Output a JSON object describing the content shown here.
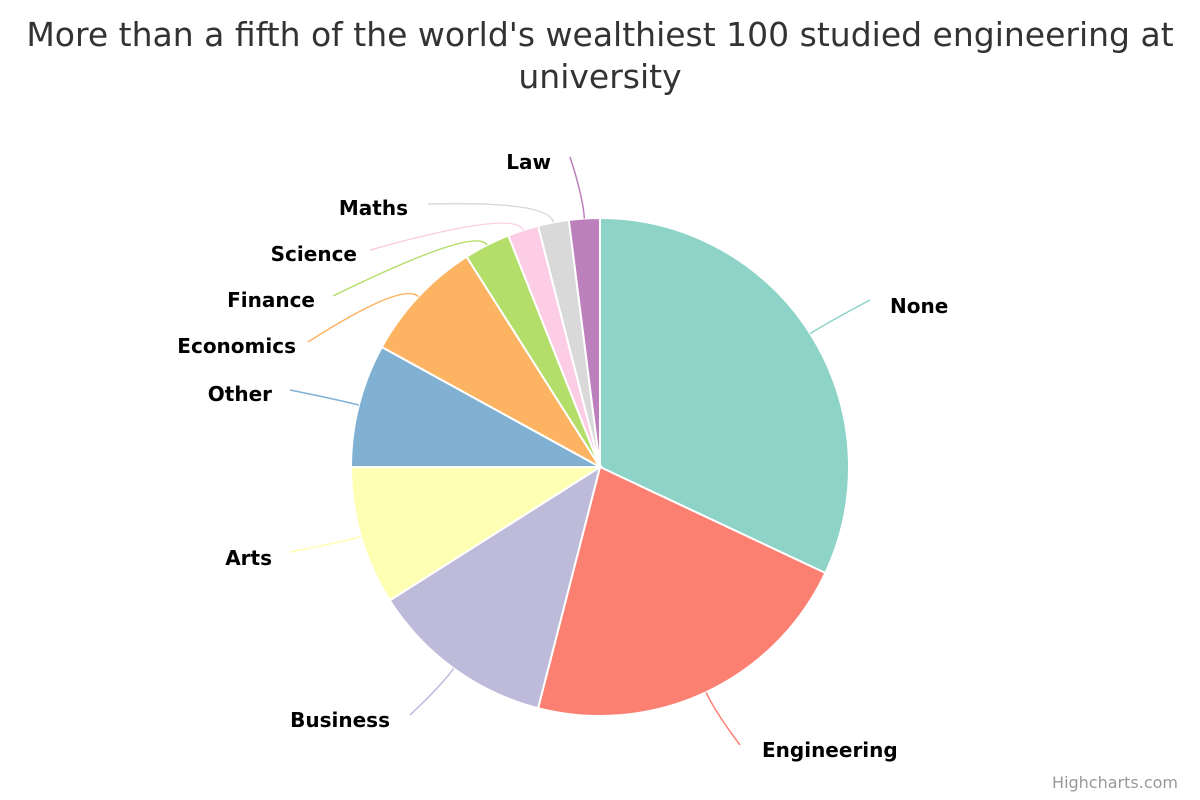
{
  "chart_data": {
    "type": "pie",
    "title": "More than a fifth of the world's wealthiest 100 studied engineering at university",
    "categories": [
      "None",
      "Engineering",
      "Business",
      "Arts",
      "Other",
      "Economics",
      "Finance",
      "Science",
      "Maths",
      "Law"
    ],
    "values": [
      32,
      22,
      12,
      9,
      8,
      8,
      3,
      2,
      2,
      2
    ],
    "unit": "%",
    "colors": [
      "#8dd3c7",
      "#fb8072",
      "#bebada",
      "#ffffb3",
      "#80b1d3",
      "#fdb462",
      "#b3de69",
      "#fccde5",
      "#d9d9d9",
      "#bc80bd"
    ],
    "legend": "none",
    "data_labels": "outside with connectors"
  },
  "credits": "Highcharts.com"
}
